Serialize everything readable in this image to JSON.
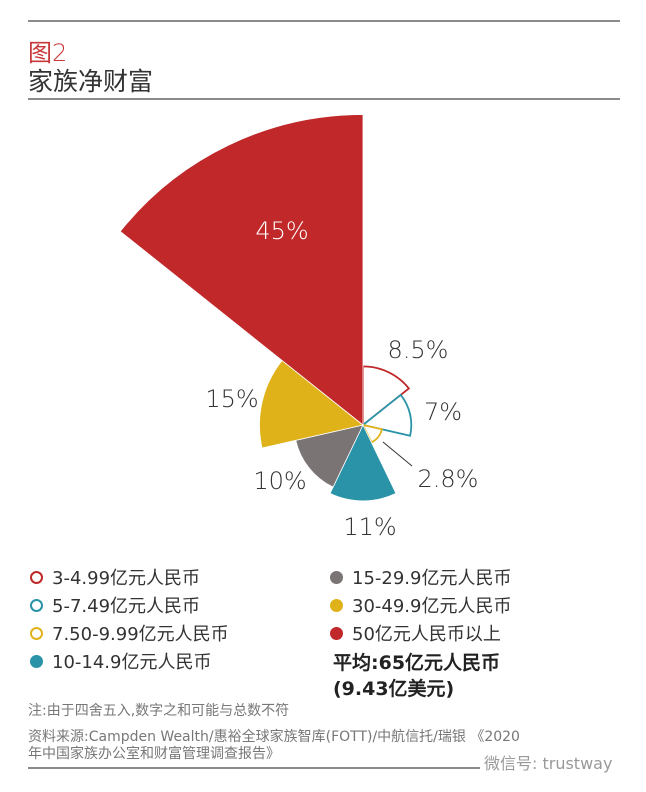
{
  "header": {
    "figure_label": "图2",
    "title": "家族净财富"
  },
  "chart_data": {
    "type": "rose",
    "title": "家族净财富",
    "categories": [
      "3-4.99亿元人民币",
      "5-7.49亿元人民币",
      "7.50-9.99亿元人民币",
      "10-14.9亿元人民币",
      "15-29.9亿元人民币",
      "30-49.9亿元人民币",
      "50亿元人民币以上"
    ],
    "values": [
      8.5,
      7,
      2.8,
      11,
      10,
      15,
      45
    ],
    "labels": [
      "8.5%",
      "7%",
      "2.8%",
      "11%",
      "10%",
      "15%",
      "45%"
    ],
    "colors": [
      "#c0282a",
      "#2a93a8",
      "#e0b21a",
      "#2a93a8",
      "#7a7574",
      "#e0b21a",
      "#c0282a"
    ],
    "filled": [
      false,
      false,
      false,
      true,
      true,
      true,
      true
    ],
    "legend_position": "bottom"
  },
  "legend": {
    "items": [
      {
        "label": "3-4.99亿元人民币",
        "color": "#c0282a",
        "filled": false
      },
      {
        "label": "5-7.49亿元人民币",
        "color": "#2a93a8",
        "filled": false
      },
      {
        "label": "7.50-9.99亿元人民币",
        "color": "#e0b21a",
        "filled": false
      },
      {
        "label": "10-14.9亿元人民币",
        "color": "#2a93a8",
        "filled": true
      },
      {
        "label": "15-29.9亿元人民币",
        "color": "#7a7574",
        "filled": true
      },
      {
        "label": "30-49.9亿元人民币",
        "color": "#e0b21a",
        "filled": true
      },
      {
        "label": "50亿元人民币以上",
        "color": "#c0282a",
        "filled": true
      }
    ],
    "average_line1": "平均:65亿元人民币",
    "average_line2": "(9.43亿美元)"
  },
  "notes": {
    "note": "注:由于四舍五入,数字之和可能与总数不符",
    "source_line1": "资料来源:Campden Wealth/惠裕全球家族智库(FOTT)/中航信托/瑞银 《2020",
    "source_line2": "年中国家族办公室和财富管理调查报告》"
  },
  "watermark": "微信号: trustway"
}
